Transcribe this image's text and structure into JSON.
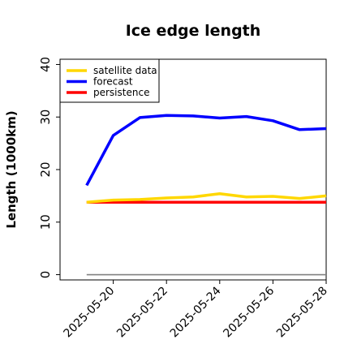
{
  "chart_data": {
    "type": "line",
    "title": "Ice edge length",
    "xlabel": "",
    "ylabel": "Length (1000km)",
    "x": [
      "2025-05-19",
      "2025-05-20",
      "2025-05-21",
      "2025-05-22",
      "2025-05-23",
      "2025-05-24",
      "2025-05-25",
      "2025-05-26",
      "2025-05-27",
      "2025-05-28"
    ],
    "xticks": [
      "2025-05-20",
      "2025-05-22",
      "2025-05-24",
      "2025-05-26",
      "2025-05-28"
    ],
    "highlight_tick": "2025-05-20",
    "highlight_color": "#1a8a1a",
    "xlim": [
      "2025-05-18",
      "2025-05-28"
    ],
    "ylim": [
      -1,
      41
    ],
    "yticks": [
      0,
      10,
      20,
      30,
      40
    ],
    "grid": false,
    "legend_position": "top-left",
    "series": [
      {
        "name": "satellite data",
        "color": "#ffd700",
        "values": [
          13.8,
          14.2,
          14.3,
          14.6,
          14.8,
          15.4,
          14.8,
          14.9,
          14.5,
          15.0
        ]
      },
      {
        "name": "forecast",
        "color": "#0000ff",
        "values": [
          17.0,
          26.5,
          29.9,
          30.3,
          30.2,
          29.8,
          30.1,
          29.3,
          27.6,
          27.8
        ]
      },
      {
        "name": "persistence",
        "color": "#ff0000",
        "values": [
          13.8,
          13.8,
          13.8,
          13.8,
          13.8,
          13.8,
          13.8,
          13.8,
          13.8,
          13.8
        ]
      }
    ],
    "baseline": {
      "value": 0,
      "color": "#808080"
    }
  }
}
